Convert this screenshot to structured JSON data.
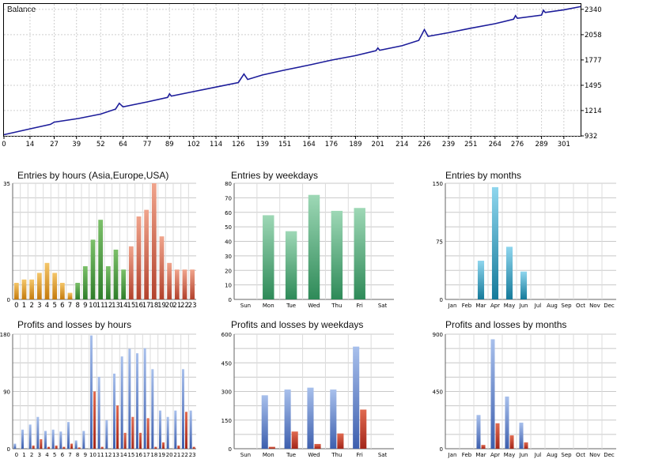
{
  "colors": {
    "balance_line": "#1c1c9a",
    "grid": "#c8c8c8",
    "grid_dotted": "#cfcfcf",
    "asia": "#e09a1e",
    "europe": "#3f9a3a",
    "usa": "#d8624a",
    "weekday_entries": "#5cb888",
    "month_entries": "#1f9bbf",
    "profit": "#5b7fc4",
    "loss": "#c0392b"
  },
  "chart_data": [
    {
      "id": "balance",
      "type": "line",
      "title": "Balance",
      "x_ticks": [
        "0",
        "14",
        "27",
        "39",
        "52",
        "64",
        "77",
        "89",
        "102",
        "114",
        "126",
        "139",
        "151",
        "164",
        "176",
        "189",
        "201",
        "214",
        "226",
        "239",
        "251",
        "264",
        "276",
        "289",
        "301"
      ],
      "y_ticks": [
        "932",
        "1214",
        "1495",
        "1777",
        "2058",
        "2340"
      ],
      "xlim": [
        0,
        310
      ],
      "ylim": [
        932,
        2400
      ],
      "x": [
        0,
        14,
        25,
        27,
        40,
        52,
        60,
        62,
        64,
        77,
        88,
        89,
        90,
        102,
        114,
        126,
        129,
        131,
        139,
        151,
        164,
        176,
        189,
        200,
        201,
        202,
        214,
        223,
        226,
        228,
        239,
        251,
        264,
        274,
        275,
        276,
        289,
        290,
        291,
        301,
        310
      ],
      "y": [
        945,
        1010,
        1060,
        1085,
        1125,
        1175,
        1230,
        1295,
        1255,
        1310,
        1360,
        1400,
        1375,
        1425,
        1475,
        1525,
        1620,
        1560,
        1610,
        1665,
        1720,
        1775,
        1825,
        1880,
        1910,
        1885,
        1935,
        1995,
        2115,
        2040,
        2080,
        2130,
        2180,
        2230,
        2270,
        2240,
        2275,
        2330,
        2305,
        2335,
        2370
      ]
    },
    {
      "id": "entries-by-hours",
      "type": "bar",
      "title": "Entries by hours (Asia,Europe,USA)",
      "categories": [
        "0",
        "1",
        "2",
        "3",
        "4",
        "5",
        "6",
        "7",
        "8",
        "9",
        "10",
        "11",
        "12",
        "13",
        "14",
        "15",
        "16",
        "17",
        "18",
        "19",
        "20",
        "21",
        "22",
        "23"
      ],
      "values": [
        5,
        6,
        6,
        8,
        11,
        8,
        5,
        2,
        5,
        10,
        18,
        24,
        10,
        15,
        9,
        16,
        25,
        27,
        35,
        19,
        11,
        9,
        9,
        9
      ],
      "groups": [
        0,
        0,
        0,
        0,
        0,
        0,
        0,
        0,
        1,
        1,
        1,
        1,
        1,
        1,
        1,
        2,
        2,
        2,
        2,
        2,
        2,
        2,
        2,
        2
      ],
      "y_ticks": [
        "0",
        "35"
      ],
      "ylim": [
        0,
        35
      ]
    },
    {
      "id": "entries-by-weekdays",
      "type": "bar",
      "title": "Entries by weekdays",
      "categories": [
        "Sun",
        "Mon",
        "Tue",
        "Wed",
        "Thu",
        "Fri",
        "Sat"
      ],
      "values": [
        0,
        58,
        47,
        72,
        61,
        63,
        0
      ],
      "y_ticks": [
        "0",
        "10",
        "20",
        "30",
        "40",
        "50",
        "60",
        "70",
        "80"
      ],
      "ylim": [
        0,
        80
      ]
    },
    {
      "id": "entries-by-months",
      "type": "bar",
      "title": "Entries by months",
      "categories": [
        "Jan",
        "Feb",
        "Mar",
        "Apr",
        "May",
        "Jun",
        "Jul",
        "Aug",
        "Sep",
        "Oct",
        "Nov",
        "Dec"
      ],
      "values": [
        0,
        0,
        50,
        145,
        68,
        36,
        0,
        0,
        0,
        0,
        0,
        0
      ],
      "y_ticks": [
        "0",
        "75",
        "150"
      ],
      "ylim": [
        0,
        150
      ]
    },
    {
      "id": "profits-losses-by-hours",
      "type": "bar",
      "title": "Profits and losses by hours",
      "categories": [
        "0",
        "1",
        "2",
        "3",
        "4",
        "5",
        "6",
        "7",
        "8",
        "9",
        "10",
        "11",
        "12",
        "13",
        "14",
        "15",
        "16",
        "17",
        "18",
        "19",
        "20",
        "21",
        "22",
        "23"
      ],
      "series": [
        {
          "values": [
            8,
            30,
            38,
            50,
            28,
            30,
            27,
            42,
            13,
            28,
            178,
            113,
            45,
            118,
            145,
            157,
            150,
            158,
            125,
            60,
            50,
            60,
            125,
            60
          ]
        },
        {
          "values": [
            0,
            0,
            5,
            15,
            3,
            5,
            3,
            8,
            2,
            0,
            90,
            3,
            0,
            68,
            25,
            50,
            25,
            48,
            3,
            10,
            0,
            5,
            58,
            3
          ]
        }
      ],
      "y_ticks": [
        "0",
        "90",
        "180"
      ],
      "ylim": [
        0,
        180
      ]
    },
    {
      "id": "profits-losses-by-weekdays",
      "type": "bar",
      "title": "Profits and losses by weekdays",
      "categories": [
        "Sun",
        "Mon",
        "Tue",
        "Wed",
        "Thu",
        "Fri",
        "Sat"
      ],
      "series": [
        {
          "values": [
            0,
            280,
            310,
            320,
            310,
            535,
            0
          ]
        },
        {
          "values": [
            0,
            10,
            90,
            25,
            80,
            205,
            0
          ]
        }
      ],
      "y_ticks": [
        "0",
        "150",
        "300",
        "450",
        "600"
      ],
      "ylim": [
        0,
        600
      ]
    },
    {
      "id": "profits-losses-by-months",
      "type": "bar",
      "title": "Profits and losses by months",
      "categories": [
        "Jan",
        "Feb",
        "Mar",
        "Apr",
        "May",
        "Jun",
        "Jul",
        "Aug",
        "Sep",
        "Oct",
        "Nov",
        "Dec"
      ],
      "series": [
        {
          "values": [
            0,
            0,
            265,
            860,
            410,
            205,
            0,
            0,
            0,
            0,
            0,
            0
          ]
        },
        {
          "values": [
            0,
            0,
            30,
            200,
            105,
            50,
            0,
            0,
            0,
            0,
            0,
            0
          ]
        }
      ],
      "y_ticks": [
        "0",
        "450",
        "900"
      ],
      "ylim": [
        0,
        900
      ]
    }
  ]
}
